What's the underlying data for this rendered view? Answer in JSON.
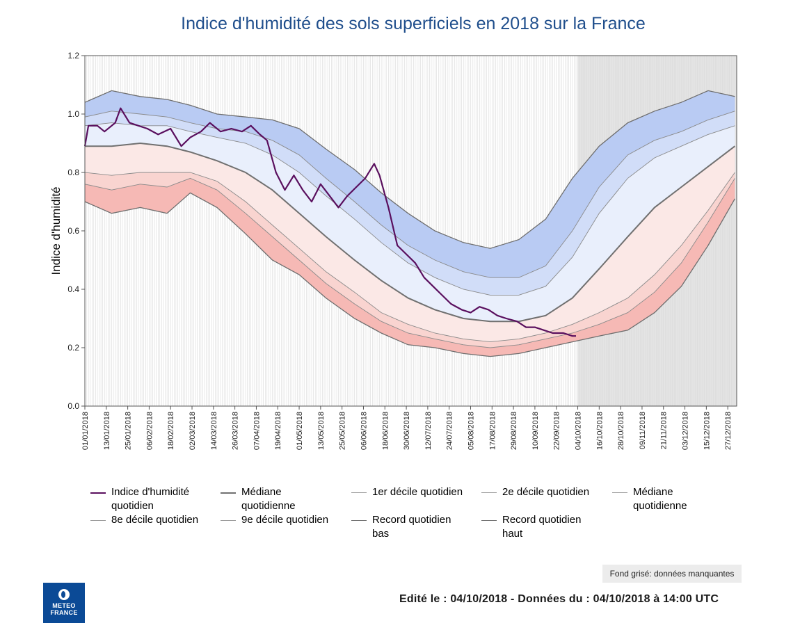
{
  "chart_data": {
    "type": "area",
    "title": "Indice d'humidité des sols superficiels en 2018 sur la France",
    "ylabel": "Indice d'humidité",
    "xlabel": "",
    "ylim": [
      0.0,
      1.2
    ],
    "xlim": [
      "2018-01-01",
      "2018-12-31"
    ],
    "y_ticks": [
      "0.0",
      "0.2",
      "0.4",
      "0.6",
      "0.8",
      "1.0",
      "1.2"
    ],
    "x_ticks": [
      "01/01/2018",
      "13/01/2018",
      "25/01/2018",
      "06/02/2018",
      "18/02/2018",
      "02/03/2018",
      "14/03/2018",
      "26/03/2018",
      "07/04/2018",
      "19/04/2018",
      "01/05/2018",
      "13/05/2018",
      "25/05/2018",
      "06/06/2018",
      "18/06/2018",
      "30/06/2018",
      "12/07/2018",
      "24/07/2018",
      "05/08/2018",
      "17/08/2018",
      "29/08/2018",
      "10/09/2018",
      "22/09/2018",
      "04/10/2018",
      "16/10/2018",
      "28/10/2018",
      "09/11/2018",
      "21/11/2018",
      "03/12/2018",
      "15/12/2018",
      "27/12/2018"
    ],
    "grid": "vertical daily lines",
    "missing_data_shading_from": "2018-10-04",
    "envelope_x": [
      "2018-01-01",
      "2018-01-16",
      "2018-02-01",
      "2018-02-16",
      "2018-03-01",
      "2018-03-16",
      "2018-04-01",
      "2018-04-16",
      "2018-05-01",
      "2018-05-16",
      "2018-06-01",
      "2018-06-16",
      "2018-07-01",
      "2018-07-16",
      "2018-08-01",
      "2018-08-16",
      "2018-09-01",
      "2018-09-16",
      "2018-10-01",
      "2018-10-16",
      "2018-11-01",
      "2018-11-16",
      "2018-12-01",
      "2018-12-16",
      "2018-12-31"
    ],
    "series": [
      {
        "name": "Record quotidien bas",
        "color": "#6e6e6e",
        "values": [
          0.7,
          0.66,
          0.68,
          0.66,
          0.73,
          0.68,
          0.59,
          0.5,
          0.45,
          0.37,
          0.3,
          0.25,
          0.21,
          0.2,
          0.18,
          0.17,
          0.18,
          0.2,
          0.22,
          0.24,
          0.26,
          0.32,
          0.41,
          0.55,
          0.71
        ]
      },
      {
        "name": "1er décile quotidien",
        "color": "#8a8a8a",
        "values": [
          0.76,
          0.74,
          0.76,
          0.75,
          0.78,
          0.74,
          0.66,
          0.58,
          0.5,
          0.42,
          0.35,
          0.29,
          0.25,
          0.23,
          0.21,
          0.2,
          0.21,
          0.23,
          0.25,
          0.28,
          0.32,
          0.39,
          0.49,
          0.63,
          0.78
        ]
      },
      {
        "name": "2e décile quotidien",
        "color": "#8a8a8a",
        "values": [
          0.8,
          0.79,
          0.8,
          0.8,
          0.8,
          0.77,
          0.7,
          0.62,
          0.54,
          0.46,
          0.39,
          0.32,
          0.28,
          0.25,
          0.23,
          0.22,
          0.23,
          0.25,
          0.28,
          0.32,
          0.37,
          0.45,
          0.55,
          0.67,
          0.8
        ]
      },
      {
        "name": "Médiane quotidienne",
        "color": "#707070",
        "values": [
          0.89,
          0.89,
          0.9,
          0.89,
          0.87,
          0.84,
          0.8,
          0.74,
          0.66,
          0.58,
          0.5,
          0.43,
          0.37,
          0.33,
          0.3,
          0.29,
          0.29,
          0.31,
          0.37,
          0.47,
          0.58,
          0.68,
          0.75,
          0.82,
          0.89
        ]
      },
      {
        "name": "8e décile quotidien",
        "color": "#8a8a8a",
        "values": [
          0.96,
          0.97,
          0.96,
          0.96,
          0.94,
          0.92,
          0.9,
          0.86,
          0.8,
          0.72,
          0.64,
          0.56,
          0.49,
          0.44,
          0.4,
          0.38,
          0.38,
          0.41,
          0.51,
          0.66,
          0.78,
          0.85,
          0.89,
          0.93,
          0.96
        ]
      },
      {
        "name": "9e décile quotidien",
        "color": "#8a8a8a",
        "values": [
          0.99,
          1.01,
          1.0,
          0.99,
          0.97,
          0.95,
          0.94,
          0.91,
          0.86,
          0.78,
          0.7,
          0.62,
          0.55,
          0.5,
          0.46,
          0.44,
          0.44,
          0.48,
          0.6,
          0.75,
          0.86,
          0.91,
          0.94,
          0.98,
          1.01
        ]
      },
      {
        "name": "Record quotidien haut",
        "color": "#6e6e6e",
        "values": [
          1.04,
          1.08,
          1.06,
          1.05,
          1.03,
          1.0,
          0.99,
          0.98,
          0.95,
          0.88,
          0.81,
          0.73,
          0.66,
          0.6,
          0.56,
          0.54,
          0.57,
          0.64,
          0.78,
          0.89,
          0.97,
          1.01,
          1.04,
          1.08,
          1.06
        ]
      },
      {
        "name": "Indice d'humidité quotidien",
        "color": "#5a0f5e",
        "x": [
          "2018-01-01",
          "2018-01-03",
          "2018-01-08",
          "2018-01-12",
          "2018-01-18",
          "2018-01-21",
          "2018-01-26",
          "2018-01-31",
          "2018-02-05",
          "2018-02-11",
          "2018-02-18",
          "2018-02-24",
          "2018-03-01",
          "2018-03-07",
          "2018-03-12",
          "2018-03-18",
          "2018-03-24",
          "2018-03-30",
          "2018-04-04",
          "2018-04-09",
          "2018-04-13",
          "2018-04-18",
          "2018-04-23",
          "2018-04-28",
          "2018-05-03",
          "2018-05-08",
          "2018-05-13",
          "2018-05-18",
          "2018-05-23",
          "2018-05-28",
          "2018-06-02",
          "2018-06-07",
          "2018-06-12",
          "2018-06-15",
          "2018-06-20",
          "2018-06-25",
          "2018-06-30",
          "2018-07-05",
          "2018-07-10",
          "2018-07-15",
          "2018-07-20",
          "2018-07-25",
          "2018-07-31",
          "2018-08-05",
          "2018-08-10",
          "2018-08-15",
          "2018-08-20",
          "2018-08-25",
          "2018-08-31",
          "2018-09-05",
          "2018-09-10",
          "2018-09-15",
          "2018-09-20",
          "2018-09-26",
          "2018-10-01",
          "2018-10-03"
        ],
        "values": [
          0.89,
          0.96,
          0.96,
          0.94,
          0.97,
          1.02,
          0.97,
          0.96,
          0.95,
          0.93,
          0.95,
          0.89,
          0.92,
          0.94,
          0.97,
          0.94,
          0.95,
          0.94,
          0.96,
          0.93,
          0.91,
          0.8,
          0.74,
          0.79,
          0.74,
          0.7,
          0.76,
          0.72,
          0.68,
          0.72,
          0.75,
          0.78,
          0.83,
          0.79,
          0.68,
          0.55,
          0.52,
          0.49,
          0.44,
          0.41,
          0.38,
          0.35,
          0.33,
          0.32,
          0.34,
          0.33,
          0.31,
          0.3,
          0.29,
          0.27,
          0.27,
          0.26,
          0.25,
          0.25,
          0.24,
          0.24
        ]
      }
    ],
    "band_colors": [
      "#f6b9b5",
      "#f9d4d0",
      "#fbe8e6",
      "#e9effc",
      "#d1ddf8",
      "#b9cbf3"
    ],
    "missing_data_color": "#e4e4e4"
  },
  "legend": {
    "items": [
      {
        "label": "Indice d'humidité\nquotidien",
        "color": "#5a0f5e",
        "width": 2.5
      },
      {
        "label": "Médiane\nquotidienne",
        "color": "#707070",
        "width": 2.5
      },
      {
        "label": "1er décile quotidien",
        "color": "#9a9a9a",
        "width": 1
      },
      {
        "label": "2e décile quotidien",
        "color": "#9a9a9a",
        "width": 1
      },
      {
        "label": "Médiane\nquotidienne",
        "color": "#9a9a9a",
        "width": 1
      },
      {
        "label": "8e décile quotidien",
        "color": "#9a9a9a",
        "width": 1
      },
      {
        "label": "9e décile quotidien",
        "color": "#9a9a9a",
        "width": 1
      },
      {
        "label": "Record quotidien\nbas",
        "color": "#707070",
        "width": 1.5
      },
      {
        "label": "Record quotidien\nhaut",
        "color": "#707070",
        "width": 1.5
      }
    ]
  },
  "missing_note": "Fond grisé: données manquantes",
  "footer": "Edité le : 04/10/2018 - Données du : 04/10/2018 à 14:00 UTC",
  "logo": {
    "line1": "METEO",
    "line2": "FRANCE"
  }
}
